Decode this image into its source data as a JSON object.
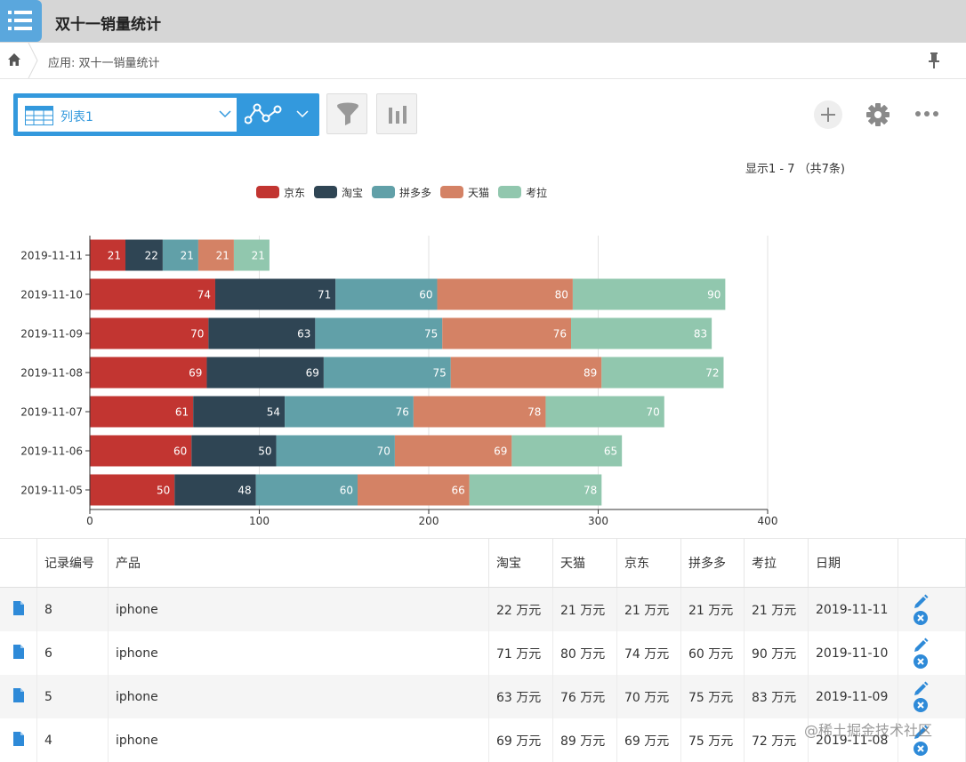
{
  "app": {
    "title": "双十一销量统计"
  },
  "breadcrumb": {
    "text": "应用: 双十一销量统计"
  },
  "toolbar": {
    "view_label": "列表1"
  },
  "pagination": {
    "info": "显示1 - 7 （共7条)"
  },
  "colors": {
    "京东": "#c23531",
    "淘宝": "#2f4554",
    "拼多多": "#61a0a8",
    "天猫": "#d48265",
    "考拉": "#91c7ae",
    "accent": "#3399dd"
  },
  "chart_data": {
    "type": "bar",
    "orientation": "horizontal",
    "stacked": true,
    "categories": [
      "2019-11-11",
      "2019-11-10",
      "2019-11-09",
      "2019-11-08",
      "2019-11-07",
      "2019-11-06",
      "2019-11-05"
    ],
    "series": [
      {
        "name": "京东",
        "values": [
          21,
          74,
          70,
          69,
          61,
          60,
          50
        ]
      },
      {
        "name": "淘宝",
        "values": [
          22,
          71,
          63,
          69,
          54,
          50,
          48
        ]
      },
      {
        "name": "拼多多",
        "values": [
          21,
          60,
          75,
          75,
          76,
          70,
          60
        ]
      },
      {
        "name": "天猫",
        "values": [
          21,
          80,
          76,
          89,
          78,
          69,
          66
        ]
      },
      {
        "name": "考拉",
        "values": [
          21,
          90,
          83,
          72,
          70,
          65,
          78
        ]
      }
    ],
    "xlim": [
      0,
      400
    ],
    "xticks": [
      0,
      100,
      200,
      300,
      400
    ],
    "legend_position": "top",
    "grid": true
  },
  "table": {
    "columns": [
      "",
      "记录编号",
      "产品",
      "淘宝",
      "天猫",
      "京东",
      "拼多多",
      "考拉",
      "日期",
      ""
    ],
    "rows": [
      {
        "id": "8",
        "product": "iphone",
        "taobao": "22 万元",
        "tmall": "21 万元",
        "jd": "21 万元",
        "pdd": "21 万元",
        "kaola": "21 万元",
        "date": "2019-11-11"
      },
      {
        "id": "6",
        "product": "iphone",
        "taobao": "71 万元",
        "tmall": "80 万元",
        "jd": "74 万元",
        "pdd": "60 万元",
        "kaola": "90 万元",
        "date": "2019-11-10"
      },
      {
        "id": "5",
        "product": "iphone",
        "taobao": "63 万元",
        "tmall": "76 万元",
        "jd": "70 万元",
        "pdd": "75 万元",
        "kaola": "83 万元",
        "date": "2019-11-09"
      },
      {
        "id": "4",
        "product": "iphone",
        "taobao": "69 万元",
        "tmall": "89 万元",
        "jd": "69 万元",
        "pdd": "75 万元",
        "kaola": "72 万元",
        "date": "2019-11-08"
      }
    ]
  },
  "watermark": "@稀土掘金技术社区"
}
